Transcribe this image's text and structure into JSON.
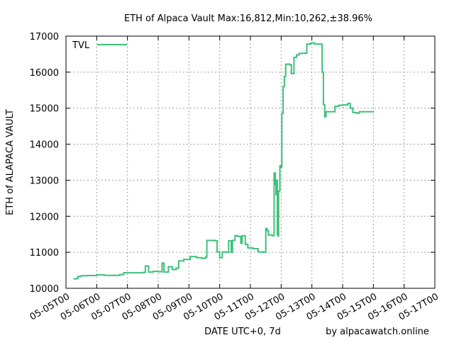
{
  "chart_data": {
    "type": "line",
    "title": "ETH of Alpaca Vault Max:16,812,Min:10,262,±38.96%",
    "xlabel": "DATE UTC+0, 7d",
    "ylabel": "ETH of ALAPACA VAULT",
    "credit": "by alpacawatch.online",
    "grid": true,
    "legend_position": "top-left",
    "xlim": [
      "2021-05-05",
      "2021-05-17"
    ],
    "ylim": [
      10000,
      17000
    ],
    "y_ticks": [
      10000,
      11000,
      12000,
      13000,
      14000,
      15000,
      16000,
      17000
    ],
    "y_tick_labels": [
      "10000",
      "11000",
      "12000",
      "13000",
      "14000",
      "15000",
      "16000",
      "17000"
    ],
    "x_ticks": [
      "2021-05-05",
      "2021-05-06",
      "2021-05-07",
      "2021-05-08",
      "2021-05-09",
      "2021-05-10",
      "2021-05-11",
      "2021-05-12",
      "2021-05-13",
      "2021-05-14",
      "2021-05-15",
      "2021-05-16",
      "2021-05-17"
    ],
    "x_tick_labels": [
      "05-05T00",
      "05-06T00",
      "05-07T00",
      "05-08T00",
      "05-09T00",
      "05-10T00",
      "05-11T00",
      "05-12T00",
      "05-13T00",
      "05-14T00",
      "05-15T00",
      "05-16T00",
      "05-17T00"
    ],
    "series": [
      {
        "name": "TVL",
        "color": "#3cc17a",
        "step": true,
        "points": [
          [
            "2021-05-05T06:00",
            10262
          ],
          [
            "2021-05-05T08:30",
            10280
          ],
          [
            "2021-05-05T09:30",
            10330
          ],
          [
            "2021-05-05T12:00",
            10350
          ],
          [
            "2021-05-05T16:00",
            10355
          ],
          [
            "2021-05-06T00:00",
            10370
          ],
          [
            "2021-05-06T06:00",
            10360
          ],
          [
            "2021-05-06T18:00",
            10380
          ],
          [
            "2021-05-06T21:00",
            10430
          ],
          [
            "2021-05-07T12:00",
            10440
          ],
          [
            "2021-05-07T14:00",
            10620
          ],
          [
            "2021-05-07T16:30",
            10450
          ],
          [
            "2021-05-07T20:00",
            10470
          ],
          [
            "2021-05-08T00:00",
            10460
          ],
          [
            "2021-05-08T03:00",
            10700
          ],
          [
            "2021-05-08T04:30",
            10450
          ],
          [
            "2021-05-08T08:00",
            10600
          ],
          [
            "2021-05-08T11:00",
            10520
          ],
          [
            "2021-05-08T14:00",
            10560
          ],
          [
            "2021-05-08T16:00",
            10760
          ],
          [
            "2021-05-08T20:00",
            10800
          ],
          [
            "2021-05-09T01:00",
            10880
          ],
          [
            "2021-05-09T06:00",
            10850
          ],
          [
            "2021-05-09T10:00",
            10830
          ],
          [
            "2021-05-09T13:00",
            10870
          ],
          [
            "2021-05-09T14:00",
            11330
          ],
          [
            "2021-05-09T20:00",
            11320
          ],
          [
            "2021-05-09T22:00",
            11010
          ],
          [
            "2021-05-10T00:00",
            10850
          ],
          [
            "2021-05-10T02:00",
            11010
          ],
          [
            "2021-05-10T05:00",
            11000
          ],
          [
            "2021-05-10T07:00",
            11320
          ],
          [
            "2021-05-10T09:00",
            11000
          ],
          [
            "2021-05-10T10:00",
            11330
          ],
          [
            "2021-05-10T12:00",
            11460
          ],
          [
            "2021-05-10T14:00",
            11440
          ],
          [
            "2021-05-10T16:30",
            11250
          ],
          [
            "2021-05-10T17:30",
            11460
          ],
          [
            "2021-05-10T20:00",
            11220
          ],
          [
            "2021-05-10T22:00",
            11120
          ],
          [
            "2021-05-11T02:00",
            11100
          ],
          [
            "2021-05-11T06:00",
            11010
          ],
          [
            "2021-05-11T10:00",
            11000
          ],
          [
            "2021-05-11T12:00",
            11660
          ],
          [
            "2021-05-11T13:00",
            11600
          ],
          [
            "2021-05-11T14:00",
            11480
          ],
          [
            "2021-05-11T17:00",
            11460
          ],
          [
            "2021-05-11T18:30",
            13200
          ],
          [
            "2021-05-11T19:30",
            12880
          ],
          [
            "2021-05-11T20:00",
            12600
          ],
          [
            "2021-05-11T20:30",
            13000
          ],
          [
            "2021-05-11T21:00",
            11500
          ],
          [
            "2021-05-11T21:30",
            11450
          ],
          [
            "2021-05-11T22:00",
            12700
          ],
          [
            "2021-05-11T23:00",
            13400
          ],
          [
            "2021-05-11T23:45",
            13360
          ],
          [
            "2021-05-12T00:30",
            14860
          ],
          [
            "2021-05-12T01:30",
            15600
          ],
          [
            "2021-05-12T02:30",
            15880
          ],
          [
            "2021-05-12T03:30",
            16220
          ],
          [
            "2021-05-12T07:00",
            16200
          ],
          [
            "2021-05-12T08:00",
            15960
          ],
          [
            "2021-05-12T10:00",
            16410
          ],
          [
            "2021-05-12T12:00",
            16480
          ],
          [
            "2021-05-12T14:00",
            16520
          ],
          [
            "2021-05-12T19:00",
            16530
          ],
          [
            "2021-05-12T20:00",
            16780
          ],
          [
            "2021-05-12T23:00",
            16800
          ],
          [
            "2021-05-13T00:00",
            16812
          ],
          [
            "2021-05-13T02:00",
            16780
          ],
          [
            "2021-05-13T06:00",
            16780
          ],
          [
            "2021-05-13T08:00",
            16000
          ],
          [
            "2021-05-13T09:00",
            15100
          ],
          [
            "2021-05-13T10:00",
            14760
          ],
          [
            "2021-05-13T11:00",
            14900
          ],
          [
            "2021-05-13T18:00",
            15050
          ],
          [
            "2021-05-13T21:00",
            15080
          ],
          [
            "2021-05-14T00:00",
            15090
          ],
          [
            "2021-05-14T04:00",
            15130
          ],
          [
            "2021-05-14T06:00",
            15000
          ],
          [
            "2021-05-14T08:00",
            14880
          ],
          [
            "2021-05-14T11:00",
            14860
          ],
          [
            "2021-05-14T13:00",
            14900
          ],
          [
            "2021-05-15T00:00",
            14910
          ]
        ]
      }
    ]
  }
}
